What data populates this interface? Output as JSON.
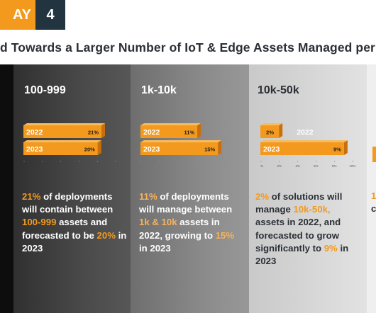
{
  "header": {
    "day_label": "AY",
    "day_number": "4",
    "title": "d Towards a Larger Number of IoT & Edge Assets Managed per De"
  },
  "colors": {
    "accent": "#f39a1e",
    "dark_tab": "#21343f"
  },
  "chart_data": [
    {
      "type": "bar",
      "orientation": "horizontal",
      "title": "100-999",
      "categories": [
        "2022",
        "2023"
      ],
      "values": [
        21,
        20
      ],
      "value_labels": [
        "21%",
        "20%"
      ],
      "xlim": [
        0,
        25
      ],
      "x_ticks": [
        "",
        "",
        "",
        "",
        "",
        ""
      ]
    },
    {
      "type": "bar",
      "orientation": "horizontal",
      "title": "1k-10k",
      "categories": [
        "2022",
        "2023"
      ],
      "values": [
        11,
        15
      ],
      "value_labels": [
        "11%",
        "15%"
      ],
      "xlim": [
        0,
        18
      ],
      "x_ticks": [
        "",
        "",
        "",
        "",
        "",
        ""
      ]
    },
    {
      "type": "bar",
      "orientation": "horizontal",
      "title": "10k-50k",
      "categories": [
        "2022",
        "2023"
      ],
      "values": [
        2,
        9
      ],
      "value_labels": [
        "2%",
        "9%"
      ],
      "xlim": [
        0,
        10
      ],
      "x_ticks": [
        "0%",
        "2%",
        "4%",
        "6%",
        "8%",
        "10%"
      ]
    }
  ],
  "columns": [
    {
      "desc": [
        {
          "t": "21%",
          "h": true
        },
        {
          "t": " of deployments will contain between ",
          "h": false
        },
        {
          "t": "100-999",
          "h": true
        },
        {
          "t": " assets and forecasted to be ",
          "h": false
        },
        {
          "t": "20%",
          "h": true
        },
        {
          "t": " in 2023",
          "h": false
        }
      ]
    },
    {
      "desc": [
        {
          "t": "11%",
          "h": true
        },
        {
          "t": " of deployments will manage between ",
          "h": false
        },
        {
          "t": "1k & 10k",
          "h": true
        },
        {
          "t": " assets in 2022, growing to ",
          "h": false
        },
        {
          "t": "15%",
          "h": true
        },
        {
          "t": " in 2023",
          "h": false
        }
      ]
    },
    {
      "desc": [
        {
          "t": "2%",
          "h": true
        },
        {
          "t": " of solutions will manage ",
          "h": false
        },
        {
          "t": "10k-50k,",
          "h": true
        },
        {
          "t": " assets in 2022, and forecasted to grow significantly to ",
          "h": false
        },
        {
          "t": "9%",
          "h": true
        },
        {
          "t": " in 2023",
          "h": false
        }
      ]
    }
  ],
  "peek": {
    "line1": "1",
    "line2": "c"
  }
}
